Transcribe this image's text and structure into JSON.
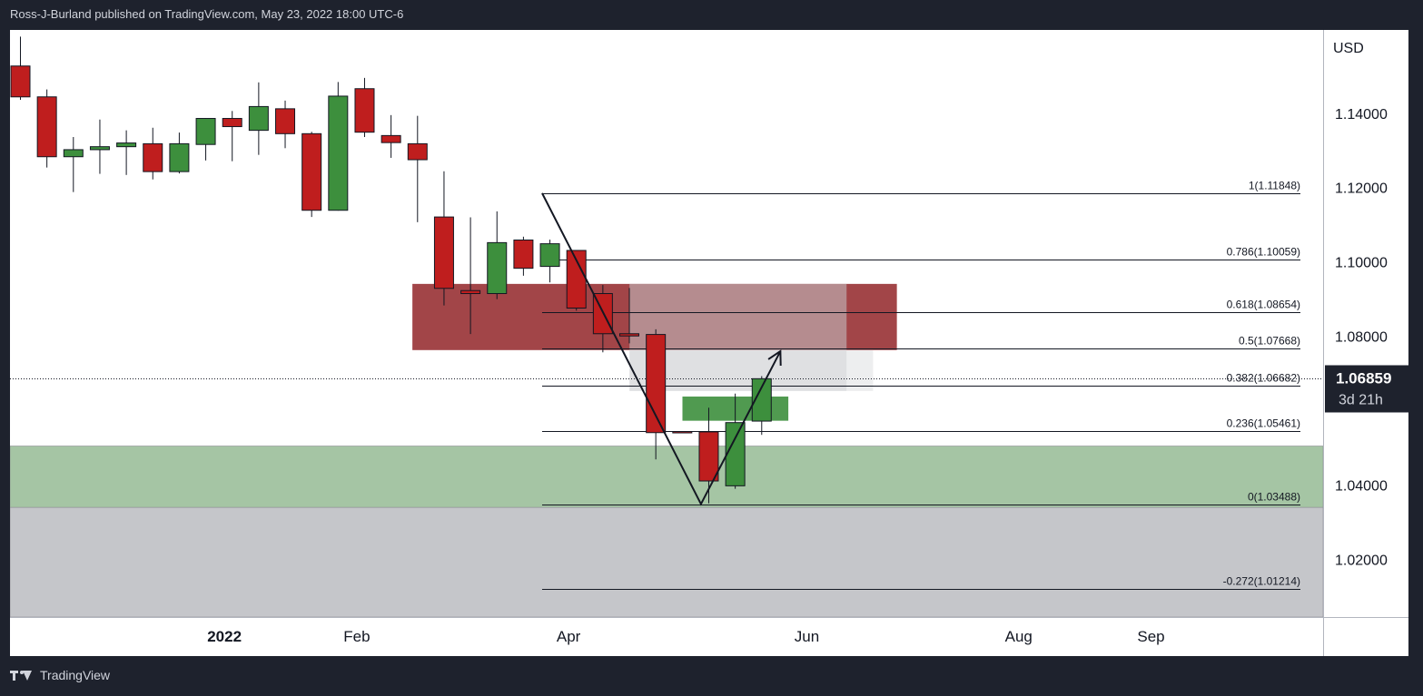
{
  "header": {
    "publisher": "Ross-J-Burland published on TradingView.com, May 23, 2022 18:00 UTC-6"
  },
  "footer": {
    "brand": "TradingView"
  },
  "colors": {
    "bull": "#3d8f3d",
    "bear": "#bf1e1e",
    "red_zone": "#9d3b3e",
    "green_zone": "#a5c5a4",
    "grey_zone": "#c5c6ca",
    "price_badge": "#1e222d"
  },
  "chart_data": {
    "type": "candlestick",
    "y_axis": {
      "unit": "USD",
      "ticks": [
        {
          "value": 1.14,
          "label": "1.14000"
        },
        {
          "value": 1.12,
          "label": "1.12000"
        },
        {
          "value": 1.1,
          "label": "1.10000"
        },
        {
          "value": 1.08,
          "label": "1.08000"
        },
        {
          "value": 1.04,
          "label": "1.04000"
        },
        {
          "value": 1.02,
          "label": "1.02000"
        }
      ],
      "ylim": [
        1.0045,
        1.1624
      ]
    },
    "x_axis": {
      "ticks": [
        {
          "week": 8.1,
          "label": "2022",
          "bold": true
        },
        {
          "week": 13.1,
          "label": "Feb",
          "bold": false
        },
        {
          "week": 21.1,
          "label": "Apr",
          "bold": false
        },
        {
          "week": 30.1,
          "label": "Jun",
          "bold": false
        },
        {
          "week": 38.1,
          "label": "Aug",
          "bold": false
        },
        {
          "week": 43.1,
          "label": "Sep",
          "bold": false
        }
      ],
      "xlim": [
        0,
        49.6
      ]
    },
    "current_price": {
      "value": 1.06859,
      "label": "1.06859",
      "countdown": "3d 21h"
    },
    "candles": [
      {
        "o": 1.1527,
        "h": 1.1606,
        "l": 1.1436,
        "c": 1.1444
      },
      {
        "o": 1.1444,
        "h": 1.1464,
        "l": 1.1254,
        "c": 1.1283
      },
      {
        "o": 1.1283,
        "h": 1.1336,
        "l": 1.1188,
        "c": 1.1302
      },
      {
        "o": 1.1302,
        "h": 1.1383,
        "l": 1.1237,
        "c": 1.131
      },
      {
        "o": 1.131,
        "h": 1.1354,
        "l": 1.1234,
        "c": 1.132
      },
      {
        "o": 1.1318,
        "h": 1.1361,
        "l": 1.1222,
        "c": 1.1243
      },
      {
        "o": 1.1243,
        "h": 1.1348,
        "l": 1.1238,
        "c": 1.1318
      },
      {
        "o": 1.1316,
        "h": 1.1387,
        "l": 1.1273,
        "c": 1.1386
      },
      {
        "o": 1.1386,
        "h": 1.1406,
        "l": 1.1271,
        "c": 1.1364
      },
      {
        "o": 1.1354,
        "h": 1.1483,
        "l": 1.1288,
        "c": 1.1418
      },
      {
        "o": 1.1412,
        "h": 1.1434,
        "l": 1.1306,
        "c": 1.1345
      },
      {
        "o": 1.1345,
        "h": 1.135,
        "l": 1.1121,
        "c": 1.1139
      },
      {
        "o": 1.1139,
        "h": 1.1484,
        "l": 1.1138,
        "c": 1.1446
      },
      {
        "o": 1.1466,
        "h": 1.1495,
        "l": 1.1336,
        "c": 1.1349
      },
      {
        "o": 1.134,
        "h": 1.1395,
        "l": 1.128,
        "c": 1.1321
      },
      {
        "o": 1.1318,
        "h": 1.1393,
        "l": 1.1107,
        "c": 1.1275
      },
      {
        "o": 1.1121,
        "h": 1.1244,
        "l": 1.0883,
        "c": 1.0929
      },
      {
        "o": 1.0923,
        "h": 1.112,
        "l": 1.0806,
        "c": 1.0915
      },
      {
        "o": 1.0915,
        "h": 1.1136,
        "l": 1.09,
        "c": 1.1052
      },
      {
        "o": 1.1059,
        "h": 1.1068,
        "l": 1.0963,
        "c": 1.0983
      },
      {
        "o": 1.0988,
        "h": 1.106,
        "l": 1.0945,
        "c": 1.1049
      },
      {
        "o": 1.1031,
        "h": 1.1029,
        "l": 1.0869,
        "c": 1.0876
      },
      {
        "o": 1.0915,
        "h": 1.0938,
        "l": 1.0757,
        "c": 1.0807
      },
      {
        "o": 1.0807,
        "h": 1.093,
        "l": 1.0781,
        "c": 1.0801
      },
      {
        "o": 1.0805,
        "h": 1.0819,
        "l": 1.0469,
        "c": 1.0541
      },
      {
        "o": 1.0544,
        "h": 1.0545,
        "l": 1.0541,
        "c": 1.0543
      },
      {
        "o": 1.0543,
        "h": 1.0608,
        "l": 1.0351,
        "c": 1.0411
      },
      {
        "o": 1.0398,
        "h": 1.0646,
        "l": 1.039,
        "c": 1.0568
      },
      {
        "o": 1.0572,
        "h": 1.0693,
        "l": 1.0535,
        "c": 1.0686
      }
    ],
    "fibonacci": [
      {
        "ratio": 1,
        "value": 1.11848,
        "label": "1(1.11848)"
      },
      {
        "ratio": 0.786,
        "value": 1.10059,
        "label": "0.786(1.10059)"
      },
      {
        "ratio": 0.618,
        "value": 1.08654,
        "label": "0.618(1.08654)"
      },
      {
        "ratio": 0.5,
        "value": 1.07668,
        "label": "0.5(1.07668)"
      },
      {
        "ratio": 0.382,
        "value": 1.06682,
        "label": "0.382(1.06682)"
      },
      {
        "ratio": 0.236,
        "value": 1.05461,
        "label": "0.236(1.05461)"
      },
      {
        "ratio": 0,
        "value": 1.03488,
        "label": "0(1.03488)"
      },
      {
        "ratio": -0.272,
        "value": 1.01214,
        "label": "-0.272(1.01214)"
      }
    ],
    "fib_start_week": 20.1,
    "zones": [
      {
        "kind": "red_supply",
        "x0": 15.2,
        "x1": 33.5,
        "y0": 1.0763,
        "y1": 1.0941,
        "color": "#9d3b3e",
        "opacity": 0.95
      },
      {
        "kind": "grey_overlay",
        "x0": 23.4,
        "x1": 31.6,
        "y0": 1.0653,
        "y1": 1.0941,
        "color": "#c5c6ca",
        "opacity": 0.55
      },
      {
        "kind": "grey_light",
        "x0": 31.6,
        "x1": 32.6,
        "y0": 1.0653,
        "y1": 1.0763,
        "color": "#c5c6ca",
        "opacity": 0.3
      },
      {
        "kind": "green_small",
        "x0": 25.4,
        "x1": 29.4,
        "y0": 1.0573,
        "y1": 1.0638,
        "color": "#3d8f3d",
        "opacity": 0.9
      },
      {
        "kind": "green_demand",
        "x0": 0,
        "x1": 49.6,
        "y0": 1.034,
        "y1": 1.0505,
        "color": "#a5c5a4",
        "opacity": 1
      },
      {
        "kind": "grey_lower",
        "x0": 0,
        "x1": 49.6,
        "y0": 1.0045,
        "y1": 1.034,
        "color": "#c5c6ca",
        "opacity": 1
      }
    ],
    "drawing_path": [
      {
        "week": 20.1,
        "y": 1.1185
      },
      {
        "week": 26.1,
        "y": 1.0349
      },
      {
        "week": 29.1,
        "y": 1.076
      }
    ]
  }
}
